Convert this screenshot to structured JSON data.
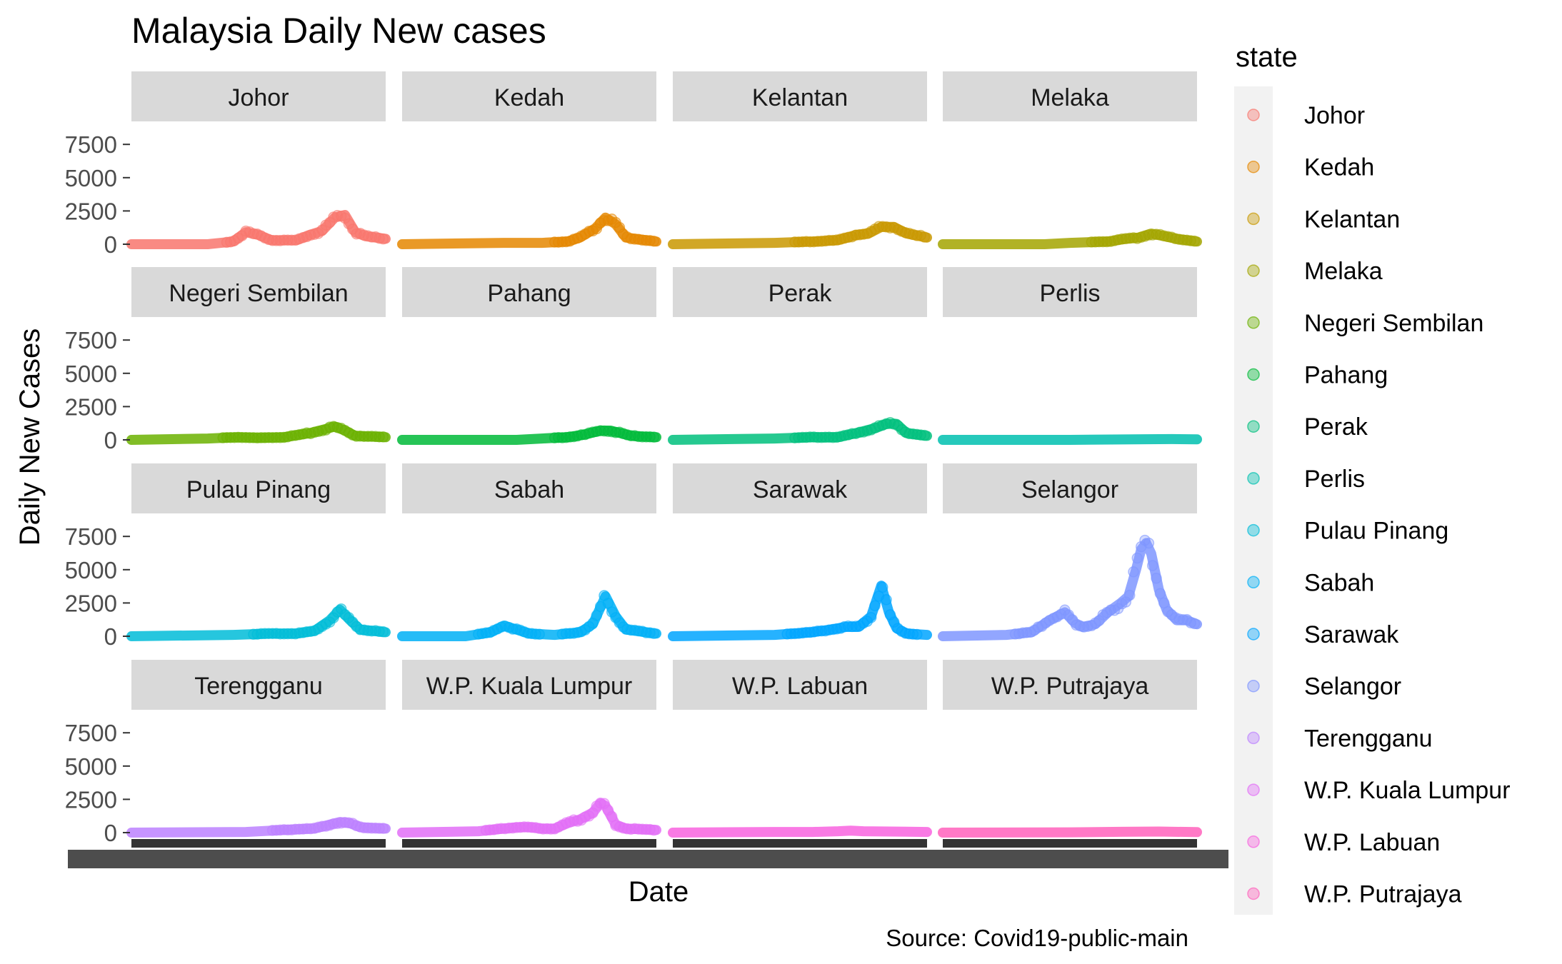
{
  "chart_data": {
    "type": "scatter",
    "title": "Malaysia Daily New cases",
    "xlabel": "Date",
    "ylabel": "Daily New Cases",
    "caption": "Source: Covid19-public-main",
    "legend_title": "state",
    "legend_position": "right",
    "facet_layout": "4x4",
    "y_ticks": [
      0,
      2500,
      5000,
      7500
    ],
    "ylim": [
      -300,
      8800
    ],
    "x_index_range": [
      0,
      100
    ],
    "series": [
      {
        "name": "Johor",
        "color": "#F8766D",
        "points": [
          [
            0,
            0
          ],
          [
            30,
            0
          ],
          [
            40,
            200
          ],
          [
            45,
            900
          ],
          [
            50,
            700
          ],
          [
            55,
            300
          ],
          [
            65,
            300
          ],
          [
            70,
            700
          ],
          [
            75,
            1000
          ],
          [
            80,
            2000
          ],
          [
            84,
            2200
          ],
          [
            88,
            900
          ],
          [
            92,
            600
          ],
          [
            100,
            400
          ]
        ]
      },
      {
        "name": "Kedah",
        "color": "#E58700",
        "points": [
          [
            0,
            0
          ],
          [
            40,
            100
          ],
          [
            55,
            100
          ],
          [
            65,
            200
          ],
          [
            70,
            500
          ],
          [
            76,
            1200
          ],
          [
            80,
            2000
          ],
          [
            84,
            1500
          ],
          [
            88,
            500
          ],
          [
            100,
            200
          ]
        ]
      },
      {
        "name": "Kelantan",
        "color": "#C99800",
        "points": [
          [
            0,
            0
          ],
          [
            40,
            100
          ],
          [
            55,
            200
          ],
          [
            65,
            300
          ],
          [
            72,
            700
          ],
          [
            77,
            800
          ],
          [
            82,
            1300
          ],
          [
            87,
            1300
          ],
          [
            92,
            800
          ],
          [
            100,
            500
          ]
        ]
      },
      {
        "name": "Melaka",
        "color": "#A3A500",
        "points": [
          [
            0,
            0
          ],
          [
            40,
            0
          ],
          [
            50,
            100
          ],
          [
            65,
            200
          ],
          [
            72,
            400
          ],
          [
            77,
            500
          ],
          [
            82,
            800
          ],
          [
            87,
            600
          ],
          [
            92,
            400
          ],
          [
            100,
            200
          ]
        ]
      },
      {
        "name": "Negeri Sembilan",
        "color": "#6BB100",
        "points": [
          [
            0,
            0
          ],
          [
            30,
            100
          ],
          [
            42,
            200
          ],
          [
            50,
            150
          ],
          [
            60,
            200
          ],
          [
            70,
            500
          ],
          [
            76,
            800
          ],
          [
            80,
            1000
          ],
          [
            84,
            700
          ],
          [
            88,
            300
          ],
          [
            100,
            200
          ]
        ]
      },
      {
        "name": "Pahang",
        "color": "#00BA38",
        "points": [
          [
            0,
            0
          ],
          [
            45,
            0
          ],
          [
            55,
            100
          ],
          [
            65,
            200
          ],
          [
            72,
            400
          ],
          [
            78,
            700
          ],
          [
            82,
            700
          ],
          [
            86,
            500
          ],
          [
            90,
            300
          ],
          [
            100,
            200
          ]
        ]
      },
      {
        "name": "Perak",
        "color": "#00BF7D",
        "points": [
          [
            0,
            0
          ],
          [
            40,
            100
          ],
          [
            55,
            200
          ],
          [
            65,
            200
          ],
          [
            72,
            500
          ],
          [
            80,
            900
          ],
          [
            84,
            1200
          ],
          [
            88,
            1200
          ],
          [
            92,
            500
          ],
          [
            100,
            300
          ]
        ]
      },
      {
        "name": "Perlis",
        "color": "#00C0AF",
        "points": [
          [
            0,
            0
          ],
          [
            50,
            0
          ],
          [
            80,
            50
          ],
          [
            90,
            60
          ],
          [
            100,
            40
          ]
        ]
      },
      {
        "name": "Pulau Pinang",
        "color": "#00BCD8",
        "points": [
          [
            0,
            0
          ],
          [
            40,
            100
          ],
          [
            55,
            200
          ],
          [
            65,
            200
          ],
          [
            72,
            400
          ],
          [
            78,
            1200
          ],
          [
            82,
            2000
          ],
          [
            86,
            1200
          ],
          [
            90,
            500
          ],
          [
            100,
            300
          ]
        ]
      },
      {
        "name": "Sabah",
        "color": "#00B0F6",
        "points": [
          [
            0,
            0
          ],
          [
            25,
            0
          ],
          [
            35,
            300
          ],
          [
            40,
            800
          ],
          [
            45,
            500
          ],
          [
            50,
            200
          ],
          [
            60,
            100
          ],
          [
            70,
            300
          ],
          [
            75,
            900
          ],
          [
            80,
            3000
          ],
          [
            84,
            1500
          ],
          [
            88,
            500
          ],
          [
            100,
            200
          ]
        ]
      },
      {
        "name": "Sarawak",
        "color": "#00A5FF",
        "points": [
          [
            0,
            0
          ],
          [
            40,
            100
          ],
          [
            55,
            300
          ],
          [
            62,
            500
          ],
          [
            68,
            700
          ],
          [
            73,
            700
          ],
          [
            78,
            1500
          ],
          [
            82,
            3800
          ],
          [
            85,
            1800
          ],
          [
            88,
            600
          ],
          [
            92,
            200
          ],
          [
            100,
            100
          ]
        ]
      },
      {
        "name": "Selangor",
        "color": "#7F96FF",
        "points": [
          [
            0,
            0
          ],
          [
            25,
            100
          ],
          [
            35,
            300
          ],
          [
            42,
            1200
          ],
          [
            48,
            1800
          ],
          [
            52,
            1000
          ],
          [
            55,
            700
          ],
          [
            60,
            900
          ],
          [
            65,
            1800
          ],
          [
            70,
            2500
          ],
          [
            73,
            3000
          ],
          [
            76,
            5000
          ],
          [
            78,
            6500
          ],
          [
            80,
            7000
          ],
          [
            82,
            6200
          ],
          [
            85,
            3500
          ],
          [
            88,
            2000
          ],
          [
            92,
            1200
          ],
          [
            96,
            1200
          ],
          [
            100,
            900
          ]
        ]
      },
      {
        "name": "Terengganu",
        "color": "#BC81FF",
        "points": [
          [
            0,
            0
          ],
          [
            45,
            50
          ],
          [
            55,
            150
          ],
          [
            65,
            250
          ],
          [
            72,
            300
          ],
          [
            78,
            600
          ],
          [
            82,
            800
          ],
          [
            86,
            700
          ],
          [
            90,
            400
          ],
          [
            100,
            300
          ]
        ]
      },
      {
        "name": "W.P. Kuala Lumpur",
        "color": "#E26EF7",
        "points": [
          [
            0,
            0
          ],
          [
            30,
            100
          ],
          [
            40,
            300
          ],
          [
            45,
            400
          ],
          [
            50,
            400
          ],
          [
            55,
            300
          ],
          [
            60,
            300
          ],
          [
            65,
            700
          ],
          [
            70,
            1000
          ],
          [
            75,
            1500
          ],
          [
            78,
            2200
          ],
          [
            80,
            2000
          ],
          [
            84,
            600
          ],
          [
            88,
            300
          ],
          [
            100,
            200
          ]
        ]
      },
      {
        "name": "W.P. Labuan",
        "color": "#F863DF",
        "points": [
          [
            0,
            0
          ],
          [
            40,
            50
          ],
          [
            55,
            50
          ],
          [
            65,
            100
          ],
          [
            70,
            150
          ],
          [
            75,
            100
          ],
          [
            100,
            50
          ]
        ]
      },
      {
        "name": "W.P. Putrajaya",
        "color": "#FF62BC",
        "points": [
          [
            0,
            0
          ],
          [
            50,
            20
          ],
          [
            70,
            60
          ],
          [
            85,
            80
          ],
          [
            100,
            40
          ]
        ]
      }
    ],
    "legend_swatch": "#FF6C91"
  }
}
